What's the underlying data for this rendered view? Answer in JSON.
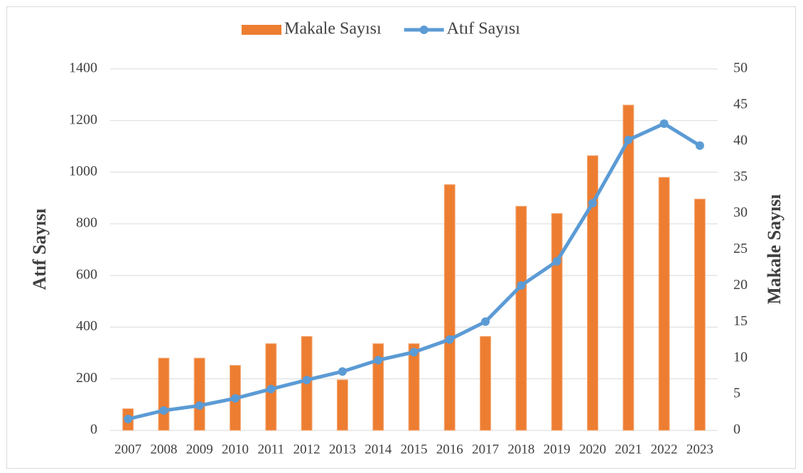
{
  "chart_data": {
    "type": "bar",
    "categories": [
      "2007",
      "2008",
      "2009",
      "2010",
      "2011",
      "2012",
      "2013",
      "2014",
      "2015",
      "2016",
      "2017",
      "2018",
      "2019",
      "2020",
      "2021",
      "2022",
      "2023"
    ],
    "series": [
      {
        "name": "Makale Sayısı",
        "type": "bar",
        "axis": "y2",
        "color": "#ed7d31",
        "values": [
          3,
          10,
          10,
          9,
          12,
          13,
          7,
          12,
          12,
          34,
          13,
          31,
          30,
          38,
          45,
          35,
          32
        ]
      },
      {
        "name": "Atıf Sayısı",
        "type": "line",
        "axis": "y",
        "color": "#5b9bd5",
        "values": [
          44,
          77,
          96,
          124,
          160,
          195,
          228,
          272,
          303,
          352,
          421,
          561,
          655,
          880,
          1125,
          1188,
          1103
        ]
      }
    ],
    "ylabel": "Atıf Sayısı",
    "y2label": "Makale Sayısı",
    "ylim": [
      0,
      1400
    ],
    "yticks": [
      0,
      200,
      400,
      600,
      800,
      1000,
      1200,
      1400
    ],
    "y2lim": [
      0,
      50
    ],
    "y2ticks": [
      0,
      5,
      10,
      15,
      20,
      25,
      30,
      35,
      40,
      45,
      50
    ],
    "grid": true,
    "legend": "top"
  }
}
